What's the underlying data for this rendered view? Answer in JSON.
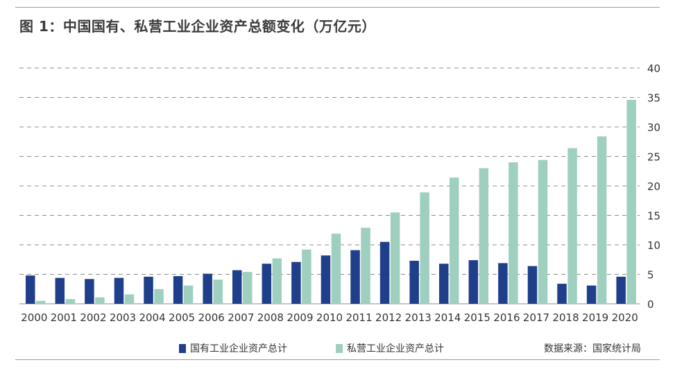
{
  "title": "图 1：中国国有、私营工业企业资产总额变化（万亿元）",
  "source": "数据来源：国家统计局",
  "colors": {
    "state": "#1f3f8a",
    "private": "#9fcfbf",
    "grid": "#8c8c8c",
    "axis_text": "#333333"
  },
  "chart_data": {
    "type": "bar",
    "title": "图 1：中国国有、私营工业企业资产总额变化（万亿元）",
    "xlabel": "",
    "ylabel": "",
    "categories": [
      "2000",
      "2001",
      "2002",
      "2003",
      "2004",
      "2005",
      "2006",
      "2007",
      "2008",
      "2009",
      "2010",
      "2011",
      "2012",
      "2013",
      "2014",
      "2015",
      "2016",
      "2017",
      "2018",
      "2019",
      "2020"
    ],
    "series": [
      {
        "name": "国有工业企业资产总计",
        "color": "#1f3f8a",
        "values": [
          4.8,
          4.4,
          4.2,
          4.4,
          4.6,
          4.7,
          5.1,
          5.7,
          6.8,
          7.1,
          8.2,
          9.1,
          10.5,
          7.3,
          6.8,
          7.4,
          6.9,
          6.4,
          3.4,
          3.1,
          4.6
        ]
      },
      {
        "name": "私营工业企业资产总计",
        "color": "#9fcfbf",
        "values": [
          0.5,
          0.8,
          1.1,
          1.6,
          2.5,
          3.1,
          4.1,
          5.4,
          7.7,
          9.2,
          11.9,
          12.9,
          15.5,
          18.9,
          21.4,
          23.0,
          24.0,
          24.4,
          26.4,
          28.4,
          34.6
        ]
      }
    ],
    "ylim": [
      0,
      40
    ],
    "yticks": [
      0,
      5,
      10,
      15,
      20,
      25,
      30,
      35,
      40
    ],
    "y_axis_position": "right",
    "grid": true,
    "grid_style": "dashed",
    "legend_position": "bottom"
  }
}
